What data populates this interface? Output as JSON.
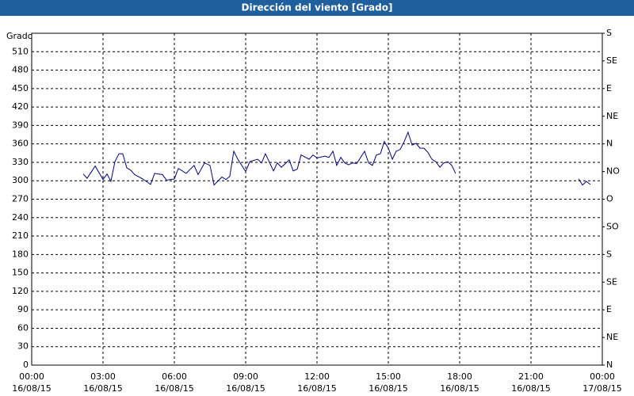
{
  "chart_data": {
    "type": "line",
    "title": "Dirección del viento [Grado]",
    "y_label": "Grado",
    "xlim": [
      0,
      24
    ],
    "xticks": [
      {
        "value": 0,
        "label": [
          "00:00",
          "16/08/15"
        ]
      },
      {
        "value": 3,
        "label": [
          "03:00",
          "16/08/15"
        ]
      },
      {
        "value": 6,
        "label": [
          "06:00",
          "16/08/15"
        ]
      },
      {
        "value": 9,
        "label": [
          "09:00",
          "16/08/15"
        ]
      },
      {
        "value": 12,
        "label": [
          "12:00",
          "16/08/15"
        ]
      },
      {
        "value": 15,
        "label": [
          "15:00",
          "16/08/15"
        ]
      },
      {
        "value": 18,
        "label": [
          "18:00",
          "16/08/15"
        ]
      },
      {
        "value": 21,
        "label": [
          "21:00",
          "16/08/15"
        ]
      },
      {
        "value": 24,
        "label": [
          "00:00",
          "17/08/15"
        ]
      }
    ],
    "ylim": [
      0,
      540
    ],
    "yticks": [
      0,
      30,
      60,
      90,
      120,
      150,
      180,
      210,
      240,
      270,
      300,
      330,
      360,
      390,
      420,
      450,
      480,
      510
    ],
    "y2lim": [
      0,
      540
    ],
    "y2ticks": [
      {
        "value": 0,
        "label": "N"
      },
      {
        "value": 45,
        "label": "NE"
      },
      {
        "value": 90,
        "label": "E"
      },
      {
        "value": 135,
        "label": "SE"
      },
      {
        "value": 180,
        "label": "S"
      },
      {
        "value": 225,
        "label": "SO"
      },
      {
        "value": 270,
        "label": "O"
      },
      {
        "value": 315,
        "label": "NO"
      },
      {
        "value": 360,
        "label": "N"
      },
      {
        "value": 405,
        "label": "NE"
      },
      {
        "value": 450,
        "label": "E"
      },
      {
        "value": 495,
        "label": "SE"
      },
      {
        "value": 540,
        "label": "S"
      }
    ],
    "grid": true,
    "series": [
      {
        "color": "#00008b",
        "x": [
          2.17,
          2.33,
          2.67,
          3,
          3.17,
          3.33,
          3.5,
          3.67,
          3.83,
          4,
          4.17,
          4.33,
          4.67,
          5,
          5.17,
          5.5,
          5.67,
          6,
          6.17,
          6.5,
          6.83,
          7,
          7.27,
          7.5,
          7.67,
          8,
          8.17,
          8.33,
          8.5,
          8.67,
          9,
          9.17,
          9.5,
          9.67,
          9.83,
          10.17,
          10.33,
          10.5,
          10.67,
          10.83,
          11,
          11.17,
          11.33,
          11.67,
          11.83,
          12,
          12.33,
          12.5,
          12.67,
          12.83,
          13,
          13.17,
          13.33,
          13.5,
          13.67,
          14,
          14.17,
          14.33,
          14.5,
          14.67,
          14.83,
          15,
          15.17,
          15.33,
          15.5,
          15.67,
          15.83,
          16,
          16.17,
          16.33,
          16.5,
          16.67,
          16.83,
          17,
          17.17,
          17.33,
          17.5,
          17.67,
          17.83,
          20,
          23,
          23.17,
          23.33,
          23.5
        ],
        "values": [
          311,
          304,
          324,
          302,
          311,
          299,
          331,
          344,
          344,
          321,
          317,
          310,
          303,
          294,
          312,
          310,
          301,
          303,
          320,
          312,
          325,
          310,
          329,
          325,
          293,
          306,
          302,
          307,
          348,
          335,
          315,
          331,
          335,
          329,
          344,
          316,
          329,
          322,
          328,
          334,
          316,
          319,
          342,
          335,
          342,
          337,
          340,
          338,
          348,
          325,
          338,
          329,
          326,
          329,
          328,
          348,
          329,
          325,
          342,
          344,
          364,
          353,
          335,
          348,
          351,
          364,
          379,
          358,
          361,
          353,
          353,
          346,
          335,
          331,
          322,
          329,
          331,
          325,
          312,
          null,
          303,
          293,
          299,
          294
        ]
      }
    ]
  }
}
